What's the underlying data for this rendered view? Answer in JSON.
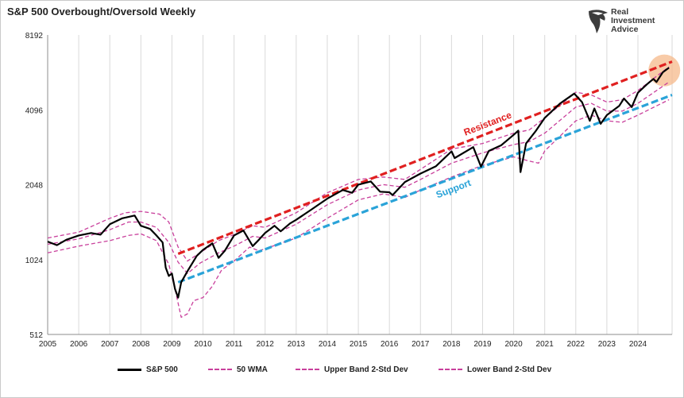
{
  "chart_data": {
    "type": "line",
    "title": "S&P 500 Overbought/Oversold Weekly",
    "xlabel": "",
    "ylabel": "",
    "x_ticks": [
      "2005",
      "2006",
      "2007",
      "2008",
      "2009",
      "2010",
      "2011",
      "2012",
      "2013",
      "2014",
      "2015",
      "2016",
      "2017",
      "2018",
      "2019",
      "2020",
      "2021",
      "2022",
      "2023",
      "2024"
    ],
    "xlim": [
      2005,
      2025.1
    ],
    "y_scale": "log2",
    "y_ticks": [
      512,
      1024,
      2048,
      4096,
      8192
    ],
    "ylim": [
      512,
      8192
    ],
    "grid": "vertical",
    "legend_position": "bottom",
    "series": [
      {
        "name": "S&P 500",
        "color": "#000000",
        "style": "solid",
        "points": [
          [
            2005.0,
            1210
          ],
          [
            2005.3,
            1170
          ],
          [
            2005.6,
            1230
          ],
          [
            2006.0,
            1280
          ],
          [
            2006.4,
            1310
          ],
          [
            2006.7,
            1290
          ],
          [
            2007.0,
            1420
          ],
          [
            2007.4,
            1500
          ],
          [
            2007.8,
            1540
          ],
          [
            2008.0,
            1400
          ],
          [
            2008.3,
            1360
          ],
          [
            2008.5,
            1280
          ],
          [
            2008.7,
            1200
          ],
          [
            2008.8,
            950
          ],
          [
            2008.9,
            880
          ],
          [
            2009.0,
            900
          ],
          [
            2009.1,
            780
          ],
          [
            2009.2,
            720
          ],
          [
            2009.3,
            830
          ],
          [
            2009.5,
            920
          ],
          [
            2009.8,
            1060
          ],
          [
            2010.0,
            1120
          ],
          [
            2010.3,
            1190
          ],
          [
            2010.5,
            1040
          ],
          [
            2010.7,
            1110
          ],
          [
            2011.0,
            1280
          ],
          [
            2011.3,
            1340
          ],
          [
            2011.6,
            1160
          ],
          [
            2011.8,
            1230
          ],
          [
            2012.0,
            1310
          ],
          [
            2012.3,
            1400
          ],
          [
            2012.5,
            1330
          ],
          [
            2012.8,
            1430
          ],
          [
            2013.0,
            1480
          ],
          [
            2013.5,
            1630
          ],
          [
            2014.0,
            1800
          ],
          [
            2014.5,
            1950
          ],
          [
            2014.8,
            1900
          ],
          [
            2015.0,
            2050
          ],
          [
            2015.4,
            2110
          ],
          [
            2015.7,
            1920
          ],
          [
            2016.0,
            1910
          ],
          [
            2016.1,
            1860
          ],
          [
            2016.5,
            2100
          ],
          [
            2017.0,
            2270
          ],
          [
            2017.5,
            2430
          ],
          [
            2018.0,
            2790
          ],
          [
            2018.1,
            2620
          ],
          [
            2018.7,
            2900
          ],
          [
            2018.95,
            2420
          ],
          [
            2019.2,
            2800
          ],
          [
            2019.6,
            2950
          ],
          [
            2020.0,
            3250
          ],
          [
            2020.15,
            3380
          ],
          [
            2020.22,
            2300
          ],
          [
            2020.4,
            3000
          ],
          [
            2020.7,
            3350
          ],
          [
            2021.0,
            3800
          ],
          [
            2021.5,
            4350
          ],
          [
            2021.95,
            4760
          ],
          [
            2022.2,
            4400
          ],
          [
            2022.45,
            3700
          ],
          [
            2022.6,
            4150
          ],
          [
            2022.8,
            3600
          ],
          [
            2023.0,
            3900
          ],
          [
            2023.4,
            4250
          ],
          [
            2023.55,
            4550
          ],
          [
            2023.8,
            4200
          ],
          [
            2024.0,
            4800
          ],
          [
            2024.3,
            5200
          ],
          [
            2024.5,
            5450
          ],
          [
            2024.6,
            5300
          ],
          [
            2024.8,
            5800
          ],
          [
            2025.0,
            6050
          ]
        ]
      },
      {
        "name": "50 WMA",
        "color": "#c9409c",
        "style": "dashed",
        "points": [
          [
            2005.0,
            1180
          ],
          [
            2006.0,
            1240
          ],
          [
            2007.0,
            1350
          ],
          [
            2007.6,
            1450
          ],
          [
            2008.0,
            1450
          ],
          [
            2008.5,
            1380
          ],
          [
            2008.9,
            1200
          ],
          [
            2009.2,
            1000
          ],
          [
            2009.5,
            900
          ],
          [
            2009.9,
            990
          ],
          [
            2010.5,
            1090
          ],
          [
            2011.0,
            1160
          ],
          [
            2011.6,
            1270
          ],
          [
            2012.0,
            1250
          ],
          [
            2013.0,
            1420
          ],
          [
            2014.0,
            1700
          ],
          [
            2015.0,
            1950
          ],
          [
            2015.8,
            2050
          ],
          [
            2016.5,
            2000
          ],
          [
            2017.0,
            2150
          ],
          [
            2018.0,
            2500
          ],
          [
            2019.0,
            2750
          ],
          [
            2020.0,
            2970
          ],
          [
            2020.5,
            3050
          ],
          [
            2021.0,
            3300
          ],
          [
            2022.0,
            4200
          ],
          [
            2022.5,
            4350
          ],
          [
            2023.0,
            4050
          ],
          [
            2023.5,
            4050
          ],
          [
            2024.0,
            4350
          ],
          [
            2025.0,
            5300
          ]
        ]
      },
      {
        "name": "Upper Band 2-Std Dev",
        "color": "#c9409c",
        "style": "dashed",
        "points": [
          [
            2005.0,
            1250
          ],
          [
            2006.0,
            1320
          ],
          [
            2007.0,
            1500
          ],
          [
            2007.5,
            1580
          ],
          [
            2008.0,
            1600
          ],
          [
            2008.6,
            1560
          ],
          [
            2008.9,
            1450
          ],
          [
            2009.2,
            1150
          ],
          [
            2009.5,
            1010
          ],
          [
            2009.9,
            1090
          ],
          [
            2010.5,
            1220
          ],
          [
            2011.0,
            1290
          ],
          [
            2011.6,
            1400
          ],
          [
            2012.0,
            1380
          ],
          [
            2013.0,
            1580
          ],
          [
            2014.0,
            1900
          ],
          [
            2015.0,
            2150
          ],
          [
            2015.8,
            2200
          ],
          [
            2016.5,
            2150
          ],
          [
            2017.0,
            2360
          ],
          [
            2018.0,
            2850
          ],
          [
            2019.0,
            3000
          ],
          [
            2020.0,
            3300
          ],
          [
            2020.5,
            3400
          ],
          [
            2021.0,
            3800
          ],
          [
            2022.0,
            4820
          ],
          [
            2022.5,
            4700
          ],
          [
            2023.0,
            4400
          ],
          [
            2023.5,
            4500
          ],
          [
            2024.0,
            4900
          ],
          [
            2025.0,
            6100
          ]
        ]
      },
      {
        "name": "Lower Band 2-Std Dev",
        "color": "#c9409c",
        "style": "dashed",
        "points": [
          [
            2005.0,
            1090
          ],
          [
            2006.0,
            1160
          ],
          [
            2007.0,
            1220
          ],
          [
            2007.6,
            1280
          ],
          [
            2008.0,
            1300
          ],
          [
            2008.5,
            1220
          ],
          [
            2008.9,
            980
          ],
          [
            2009.1,
            780
          ],
          [
            2009.3,
            600
          ],
          [
            2009.5,
            620
          ],
          [
            2009.7,
            700
          ],
          [
            2010.0,
            720
          ],
          [
            2010.3,
            800
          ],
          [
            2010.6,
            930
          ],
          [
            2011.0,
            1010
          ],
          [
            2011.5,
            1150
          ],
          [
            2011.8,
            1110
          ],
          [
            2012.5,
            1190
          ],
          [
            2013.0,
            1250
          ],
          [
            2014.0,
            1500
          ],
          [
            2015.0,
            1780
          ],
          [
            2015.8,
            1880
          ],
          [
            2016.5,
            1820
          ],
          [
            2017.0,
            1950
          ],
          [
            2018.0,
            2200
          ],
          [
            2019.0,
            2450
          ],
          [
            2020.0,
            2650
          ],
          [
            2020.5,
            2550
          ],
          [
            2020.8,
            2500
          ],
          [
            2021.0,
            2800
          ],
          [
            2022.0,
            3700
          ],
          [
            2022.5,
            3900
          ],
          [
            2023.0,
            3700
          ],
          [
            2023.5,
            3650
          ],
          [
            2024.0,
            3900
          ],
          [
            2025.0,
            4500
          ]
        ]
      }
    ],
    "trendlines": [
      {
        "label": "Resistance",
        "color": "#e02020",
        "from": [
          2009.2,
          1080
        ],
        "to": [
          2025.1,
          6400
        ]
      },
      {
        "label": "Support",
        "color": "#2aa3d8",
        "from": [
          2009.2,
          830
        ],
        "to": [
          2025.1,
          4700
        ]
      }
    ],
    "highlight": {
      "color": "#f6b98b",
      "center": [
        2024.85,
        5900
      ]
    }
  },
  "logo": {
    "line1": "Real",
    "line2": "Investment",
    "line3": "Advice"
  }
}
